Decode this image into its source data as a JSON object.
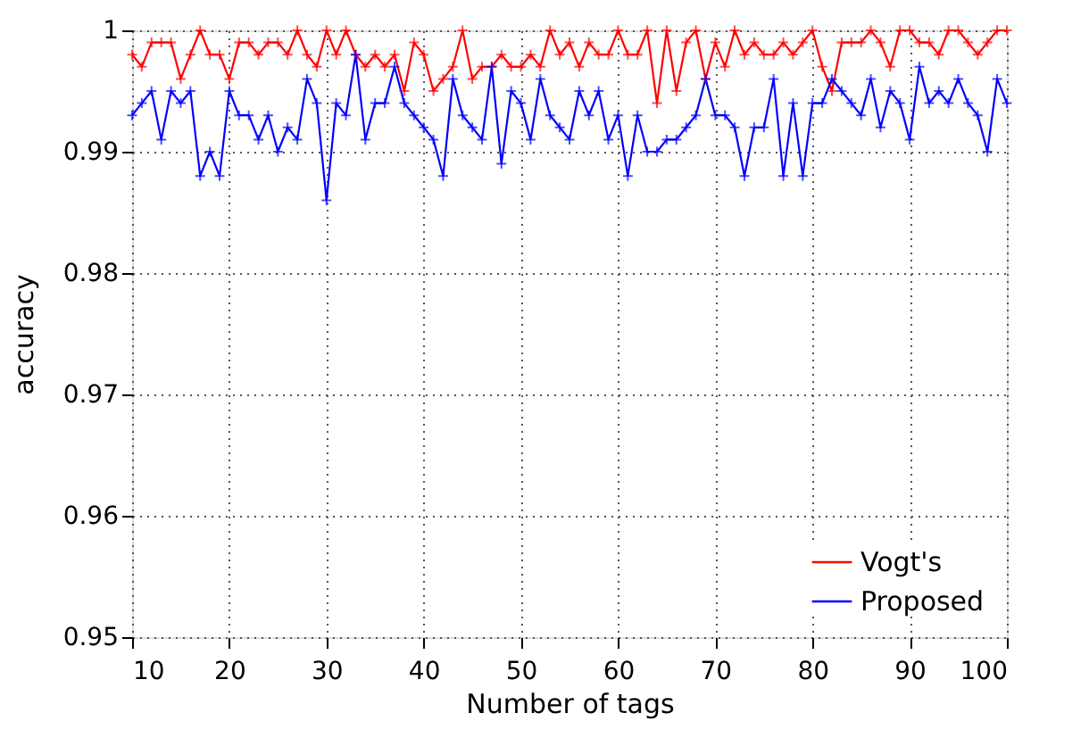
{
  "chart_data": {
    "type": "line",
    "xlabel": "Number of tags",
    "ylabel": "accuracy",
    "x": [
      10,
      11,
      12,
      13,
      14,
      15,
      16,
      17,
      18,
      19,
      20,
      21,
      22,
      23,
      24,
      25,
      26,
      27,
      28,
      29,
      30,
      31,
      32,
      33,
      34,
      35,
      36,
      37,
      38,
      39,
      40,
      41,
      42,
      43,
      44,
      45,
      46,
      47,
      48,
      49,
      50,
      51,
      52,
      53,
      54,
      55,
      56,
      57,
      58,
      59,
      60,
      61,
      62,
      63,
      64,
      65,
      66,
      67,
      68,
      69,
      70,
      71,
      72,
      73,
      74,
      75,
      76,
      77,
      78,
      79,
      80,
      81,
      82,
      83,
      84,
      85,
      86,
      87,
      88,
      89,
      90,
      91,
      92,
      93,
      94,
      95,
      96,
      97,
      98,
      99,
      100
    ],
    "series": [
      {
        "name": "Vogt's",
        "color": "#ff0000",
        "values": [
          0.998,
          0.997,
          0.999,
          0.999,
          0.999,
          0.996,
          0.998,
          1.0,
          0.998,
          0.998,
          0.996,
          0.999,
          0.999,
          0.998,
          0.999,
          0.999,
          0.998,
          1.0,
          0.998,
          0.997,
          1.0,
          0.998,
          1.0,
          0.998,
          0.997,
          0.998,
          0.997,
          0.998,
          0.995,
          0.999,
          0.998,
          0.995,
          0.996,
          0.997,
          1.0,
          0.996,
          0.997,
          0.997,
          0.998,
          0.997,
          0.997,
          0.998,
          0.997,
          1.0,
          0.998,
          0.999,
          0.997,
          0.999,
          0.998,
          0.998,
          1.0,
          0.998,
          0.998,
          1.0,
          0.994,
          1.0,
          0.995,
          0.999,
          1.0,
          0.996,
          0.999,
          0.997,
          1.0,
          0.998,
          0.999,
          0.998,
          0.998,
          0.999,
          0.998,
          0.999,
          1.0,
          0.997,
          0.995,
          0.999,
          0.999,
          0.999,
          1.0,
          0.999,
          0.997,
          1.0,
          1.0,
          0.999,
          0.999,
          0.998,
          1.0,
          1.0,
          0.999,
          0.998,
          0.999,
          1.0,
          1.0
        ]
      },
      {
        "name": "Proposed",
        "color": "#0000ff",
        "values": [
          0.993,
          0.994,
          0.995,
          0.991,
          0.995,
          0.994,
          0.995,
          0.988,
          0.99,
          0.988,
          0.995,
          0.993,
          0.993,
          0.991,
          0.993,
          0.99,
          0.992,
          0.991,
          0.996,
          0.994,
          0.986,
          0.994,
          0.993,
          0.998,
          0.991,
          0.994,
          0.994,
          0.997,
          0.994,
          0.993,
          0.992,
          0.991,
          0.988,
          0.996,
          0.993,
          0.992,
          0.991,
          0.997,
          0.989,
          0.995,
          0.994,
          0.991,
          0.996,
          0.993,
          0.992,
          0.991,
          0.995,
          0.993,
          0.995,
          0.991,
          0.993,
          0.988,
          0.993,
          0.99,
          0.99,
          0.991,
          0.991,
          0.992,
          0.993,
          0.996,
          0.993,
          0.993,
          0.992,
          0.988,
          0.992,
          0.992,
          0.996,
          0.988,
          0.994,
          0.988,
          0.994,
          0.994,
          0.996,
          0.995,
          0.994,
          0.993,
          0.996,
          0.992,
          0.995,
          0.994,
          0.991,
          0.997,
          0.994,
          0.995,
          0.994,
          0.996,
          0.994,
          0.993,
          0.99,
          0.996,
          0.994
        ]
      }
    ],
    "xlim": [
      10,
      100
    ],
    "xticks": [
      10,
      20,
      30,
      40,
      50,
      60,
      70,
      80,
      90,
      100
    ],
    "ylim": [
      0.95,
      1
    ],
    "yticks": [
      {
        "value": 0.95,
        "label": "0.95"
      },
      {
        "value": 0.96,
        "label": "0.96"
      },
      {
        "value": 0.97,
        "label": "0.97"
      },
      {
        "value": 0.98,
        "label": "0.98"
      },
      {
        "value": 0.99,
        "label": "0.99"
      },
      {
        "value": 1,
        "label": "1"
      }
    ],
    "grid": true,
    "legend": "bottom right",
    "marker": "cross",
    "line_style": "solid"
  }
}
